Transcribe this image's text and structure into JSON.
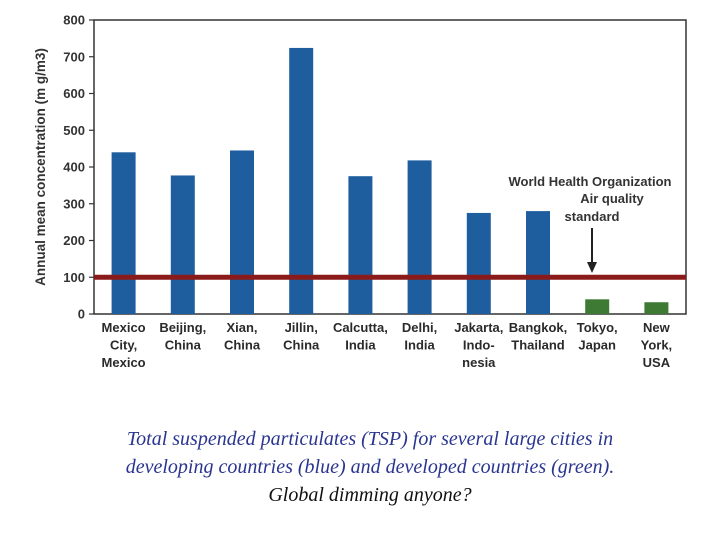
{
  "chart_data": {
    "type": "bar",
    "ylabel": "Annual mean concentration (m g/m3)",
    "ylim": [
      0,
      800
    ],
    "yticks": [
      0,
      100,
      200,
      300,
      400,
      500,
      600,
      700,
      800
    ],
    "grid": false,
    "categories": [
      [
        "Mexico",
        "City,",
        "Mexico"
      ],
      [
        "Beijing,",
        "China"
      ],
      [
        "Xian,",
        "China"
      ],
      [
        "Jillin,",
        "China"
      ],
      [
        "Calcutta,",
        "India"
      ],
      [
        "Delhi,",
        "India"
      ],
      [
        "Jakarta,",
        "Indo-",
        "nesia"
      ],
      [
        "Bangkok,",
        "Thailand"
      ],
      [
        "Tokyo,",
        "Japan"
      ],
      [
        "New",
        "York,",
        "USA"
      ]
    ],
    "values": [
      440,
      377,
      445,
      724,
      375,
      418,
      275,
      280,
      40,
      32
    ],
    "groups": [
      "developing",
      "developing",
      "developing",
      "developing",
      "developing",
      "developing",
      "developing",
      "developing",
      "developed",
      "developed"
    ],
    "colors": {
      "developing": "#1f5e9e",
      "developed": "#3f7a35",
      "reference_line": "#8b1a1a"
    },
    "reference_line": {
      "value": 100,
      "label": [
        "World Health Organization",
        "Air quality",
        "standard"
      ]
    }
  },
  "caption": {
    "line1": "Total suspended particulates (TSP) for several large cities in",
    "line2": "developing countries (blue) and developed countries (green).",
    "line3": "Global dimming anyone?"
  }
}
